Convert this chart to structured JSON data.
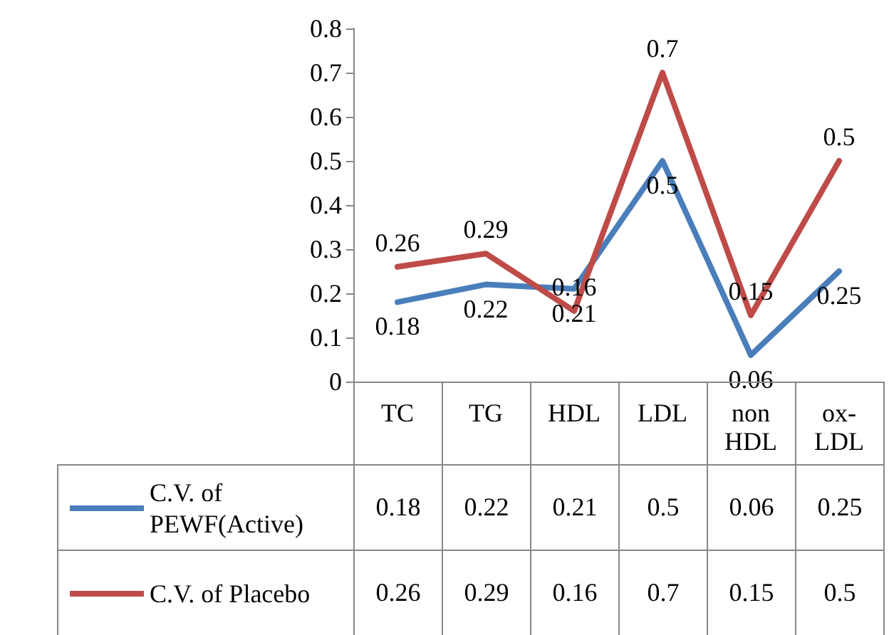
{
  "chart_data": {
    "type": "line",
    "categories": [
      "TC",
      "TG",
      "HDL",
      "LDL",
      "non HDL",
      "ox-LDL"
    ],
    "series": [
      {
        "name": "C.V. of PEWF(Active)",
        "color": "#4a7ebb",
        "values": [
          0.18,
          0.22,
          0.21,
          0.5,
          0.06,
          0.25
        ],
        "value_labels": [
          "0.18",
          "0.22",
          "0.21",
          "0.5",
          "0.06",
          "0.25"
        ]
      },
      {
        "name": "C.V. of Placebo",
        "color": "#be4b48",
        "values": [
          0.26,
          0.29,
          0.16,
          0.7,
          0.15,
          0.5
        ],
        "value_labels": [
          "0.26",
          "0.29",
          "0.16",
          "0.7",
          "0.15",
          "0.5"
        ]
      }
    ],
    "ylim": [
      0,
      0.8
    ],
    "yticks": [
      0,
      0.1,
      0.2,
      0.3,
      0.4,
      0.5,
      0.6,
      0.7,
      0.8
    ],
    "annotations": [
      "0.18",
      "0.22",
      "0.21",
      "0.5",
      "0.06",
      "0.25",
      "0.26",
      "0.29",
      "0.16",
      "0.7",
      "0.15",
      "0.5"
    ],
    "legend": "bottom",
    "marker": "none",
    "line_style": "solid"
  }
}
